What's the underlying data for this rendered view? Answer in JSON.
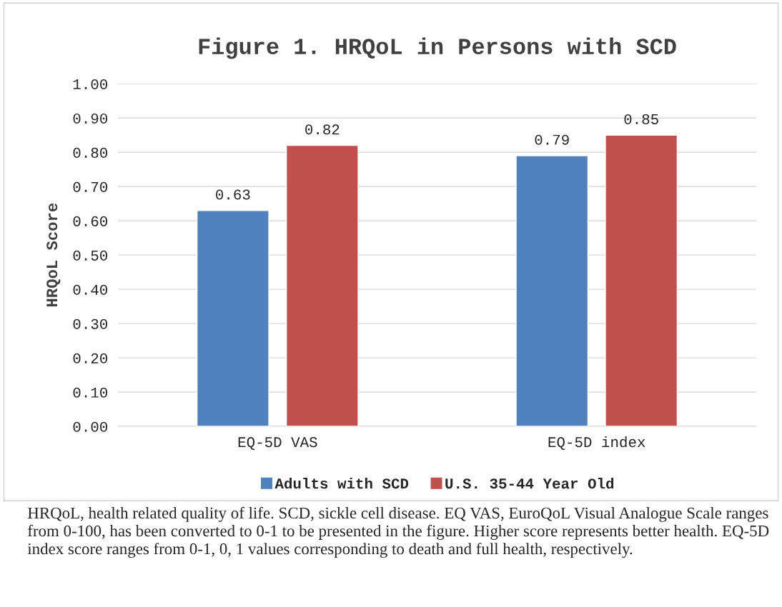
{
  "chart_data": {
    "type": "bar",
    "title": "Figure 1. HRQoL in Persons with SCD",
    "ylabel": "HRQoL Score",
    "categories": [
      "EQ-5D VAS",
      "EQ-5D index"
    ],
    "series": [
      {
        "name": "Adults with SCD",
        "color": "#4f81bd",
        "values": [
          0.63,
          0.79
        ]
      },
      {
        "name": "U.S. 35-44 Year Old",
        "color": "#c0504d",
        "values": [
          0.82,
          0.85
        ]
      }
    ],
    "ylim": [
      0,
      1
    ],
    "yticks": [
      {
        "value": 0,
        "label": "0.00"
      },
      {
        "value": 0.1,
        "label": "0.10"
      },
      {
        "value": 0.2,
        "label": "0.20"
      },
      {
        "value": 0.3,
        "label": "0.30"
      },
      {
        "value": 0.4,
        "label": "0.40"
      },
      {
        "value": 0.5,
        "label": "0.50"
      },
      {
        "value": 0.6,
        "label": "0.60"
      },
      {
        "value": 0.7,
        "label": "0.70"
      },
      {
        "value": 0.8,
        "label": "0.80"
      },
      {
        "value": 0.9,
        "label": "0.90"
      },
      {
        "value": 1,
        "label": "1.00"
      }
    ],
    "grid": "y",
    "legend": "bottom",
    "data_labels": true,
    "annotations": [
      "HRQoL, health related quality of life. SCD, sickle cell disease. EQ VAS, EuroQoL Visual Analogue Scale ranges from 0-100, has been converted to 0-1 to be presented in the figure. Higher score represents better health. EQ-5D index score ranges from 0-1, 0, 1 values corresponding to death and full health, respectively."
    ]
  }
}
